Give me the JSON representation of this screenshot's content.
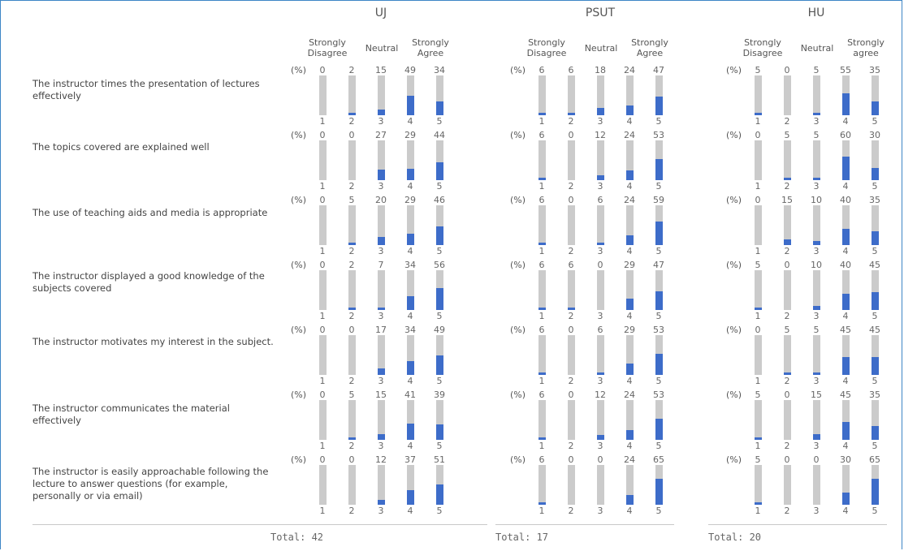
{
  "chart_data": {
    "type": "bar",
    "groups": [
      {
        "name": "UJ",
        "total": "Total: 42",
        "scale": {
          "low": "Strongly Disagree",
          "mid": "Neutral",
          "high": "Strongly Agree"
        },
        "values": [
          [
            0,
            2,
            15,
            49,
            34
          ],
          [
            0,
            0,
            27,
            29,
            44
          ],
          [
            0,
            5,
            20,
            29,
            46
          ],
          [
            0,
            2,
            7,
            34,
            56
          ],
          [
            0,
            0,
            17,
            34,
            49
          ],
          [
            0,
            5,
            15,
            41,
            39
          ],
          [
            0,
            0,
            12,
            37,
            51
          ]
        ]
      },
      {
        "name": "PSUT",
        "total": "Total: 17",
        "scale": {
          "low": "Strongly Disagree",
          "mid": "Neutral",
          "high": "Strongly Agree"
        },
        "values": [
          [
            6,
            6,
            18,
            24,
            47
          ],
          [
            6,
            0,
            12,
            24,
            53
          ],
          [
            6,
            0,
            6,
            24,
            59
          ],
          [
            6,
            6,
            0,
            29,
            47
          ],
          [
            6,
            0,
            6,
            29,
            53
          ],
          [
            6,
            0,
            12,
            24,
            53
          ],
          [
            6,
            0,
            0,
            24,
            65
          ]
        ]
      },
      {
        "name": "HU",
        "total": "Total: 20",
        "scale": {
          "low": "Strongly Disagree",
          "mid": "Neutral",
          "high": "Strongly agree"
        },
        "values": [
          [
            5,
            0,
            5,
            55,
            35
          ],
          [
            0,
            5,
            5,
            60,
            30
          ],
          [
            0,
            15,
            10,
            40,
            35
          ],
          [
            5,
            0,
            10,
            40,
            45
          ],
          [
            0,
            5,
            5,
            45,
            45
          ],
          [
            5,
            0,
            15,
            45,
            35
          ],
          [
            5,
            0,
            0,
            30,
            65
          ]
        ]
      }
    ],
    "questions": [
      "The instructor times the presentation of lectures effectively",
      "The topics covered are explained well",
      "The use of teaching aids and media is appropriate",
      "The instructor displayed a good knowledge of the subjects covered",
      "The instructor motivates my interest in the subject.",
      "The instructor communicates the material effectively",
      "The instructor is easily approachable following the lecture to answer questions (for example, personally or via email)"
    ],
    "categories": [
      "1",
      "2",
      "3",
      "4",
      "5"
    ],
    "pct_label": "(%)",
    "ylim": [
      0,
      100
    ],
    "colors": {
      "fill": "#3d6cc9",
      "track": "#cbcbcb"
    }
  }
}
